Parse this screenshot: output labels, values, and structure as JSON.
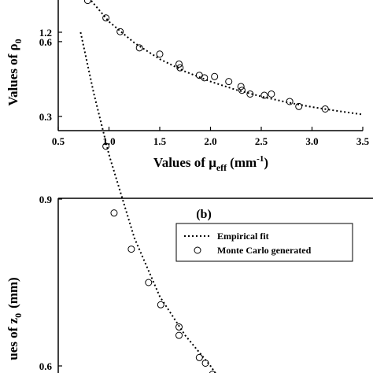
{
  "chart_data": [
    {
      "type": "scatter",
      "ylabel": "Values of ρ",
      "ylabel_sub": "0",
      "xlabel": "Values of μ",
      "xlabel_sub": "eff",
      "xlabel_unit": "(mm",
      "xlabel_unit_sup": "-1",
      "xlabel_unit_close": ")",
      "xlim": [
        0.5,
        3.5
      ],
      "ylim_visible": [
        0.27,
        0.8
      ],
      "x_ticks": [
        "0.5",
        "1.0",
        "1.5",
        "2.0",
        "2.5",
        "3.0",
        "3.5"
      ],
      "y_ticks": [
        "0.6",
        "0.3"
      ],
      "series": [
        {
          "kind": "markers",
          "points": [
            [
              0.79,
              0.765
            ],
            [
              0.97,
              0.695
            ],
            [
              1.11,
              0.64
            ],
            [
              1.3,
              0.575
            ],
            [
              1.5,
              0.55
            ],
            [
              1.69,
              0.51
            ],
            [
              1.7,
              0.495
            ],
            [
              1.89,
              0.465
            ],
            [
              1.94,
              0.455
            ],
            [
              2.04,
              0.46
            ],
            [
              2.18,
              0.44
            ],
            [
              2.3,
              0.42
            ],
            [
              2.31,
              0.405
            ],
            [
              2.39,
              0.39
            ],
            [
              2.53,
              0.385
            ],
            [
              2.6,
              0.39
            ],
            [
              2.78,
              0.36
            ],
            [
              2.87,
              0.34
            ],
            [
              3.13,
              0.33
            ]
          ]
        },
        {
          "kind": "dotted-line",
          "points": [
            [
              0.75,
              0.8
            ],
            [
              1.0,
              0.68
            ],
            [
              1.25,
              0.595
            ],
            [
              1.5,
              0.53
            ],
            [
              1.75,
              0.48
            ],
            [
              2.0,
              0.44
            ],
            [
              2.25,
              0.407
            ],
            [
              2.5,
              0.38
            ],
            [
              2.75,
              0.357
            ],
            [
              3.0,
              0.338
            ],
            [
              3.25,
              0.322
            ],
            [
              3.5,
              0.308
            ]
          ]
        }
      ]
    },
    {
      "type": "scatter",
      "panel_label": "(b)",
      "ylabel": "ues of z",
      "ylabel_sub": "0",
      "ylabel_unit": "(mm)",
      "ylim_visible": [
        0.56,
        1.2
      ],
      "y_ticks": [
        "1.2",
        "0.9",
        "0.6"
      ],
      "legend": {
        "position": "top-right",
        "entries": [
          {
            "label": "Empirical fit",
            "marker": "dotted-line"
          },
          {
            "label": "Monte Carlo generated",
            "marker": "circle"
          }
        ]
      },
      "series": [
        {
          "kind": "markers",
          "points": [
            [
              0.97,
              0.995
            ],
            [
              1.05,
              0.875
            ],
            [
              1.22,
              0.81
            ],
            [
              1.39,
              0.75
            ],
            [
              1.51,
              0.71
            ],
            [
              1.69,
              0.67
            ],
            [
              1.69,
              0.655
            ],
            [
              1.89,
              0.615
            ],
            [
              1.95,
              0.605
            ],
            [
              2.02,
              0.585
            ]
          ]
        },
        {
          "kind": "dotted-line",
          "points": [
            [
              0.72,
              1.2
            ],
            [
              0.85,
              1.09
            ],
            [
              1.0,
              0.98
            ],
            [
              1.25,
              0.83
            ],
            [
              1.5,
              0.725
            ],
            [
              1.75,
              0.655
            ],
            [
              2.0,
              0.6
            ],
            [
              2.15,
              0.56
            ]
          ]
        }
      ]
    }
  ]
}
